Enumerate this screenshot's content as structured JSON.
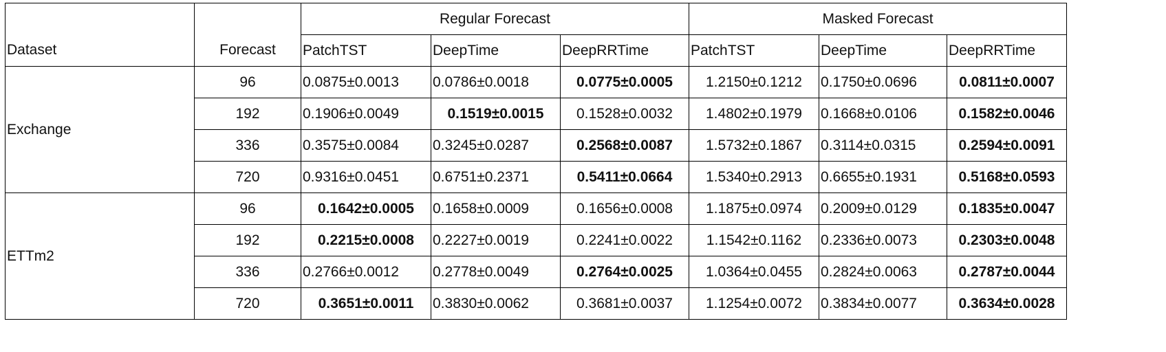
{
  "table": {
    "group_headers": [
      "Regular Forecast",
      "Masked Forecast"
    ],
    "col_dataset": "Dataset",
    "col_forecast": "Forecast",
    "models": [
      "PatchTST",
      "DeepTime",
      "DeepRRTime",
      "PatchTST",
      "DeepTime",
      "DeepRRTime"
    ],
    "groups": [
      {
        "dataset": "Exchange",
        "rows": [
          {
            "forecast": "96",
            "cells": [
              "0.0875±0.0013",
              "0.0786±0.0018",
              "0.0775±0.0005",
              "1.2150±0.1212",
              "0.1750±0.0696",
              "0.0811±0.0007"
            ],
            "bold": [
              false,
              false,
              true,
              false,
              false,
              true
            ]
          },
          {
            "forecast": "192",
            "cells": [
              "0.1906±0.0049",
              "0.1519±0.0015",
              "0.1528±0.0032",
              "1.4802±0.1979",
              "0.1668±0.0106",
              "0.1582±0.0046"
            ],
            "bold": [
              false,
              true,
              false,
              false,
              false,
              true
            ]
          },
          {
            "forecast": "336",
            "cells": [
              "0.3575±0.0084",
              "0.3245±0.0287",
              "0.2568±0.0087",
              "1.5732±0.1867",
              "0.3114±0.0315",
              "0.2594±0.0091"
            ],
            "bold": [
              false,
              false,
              true,
              false,
              false,
              true
            ]
          },
          {
            "forecast": "720",
            "cells": [
              "0.9316±0.0451",
              "0.6751±0.2371",
              "0.5411±0.0664",
              "1.5340±0.2913",
              "0.6655±0.1931",
              "0.5168±0.0593"
            ],
            "bold": [
              false,
              false,
              true,
              false,
              false,
              true
            ]
          }
        ]
      },
      {
        "dataset": "ETTm2",
        "rows": [
          {
            "forecast": "96",
            "cells": [
              "0.1642±0.0005",
              "0.1658±0.0009",
              "0.1656±0.0008",
              "1.1875±0.0974",
              "0.2009±0.0129",
              "0.1835±0.0047"
            ],
            "bold": [
              true,
              false,
              false,
              false,
              false,
              true
            ]
          },
          {
            "forecast": "192",
            "cells": [
              "0.2215±0.0008",
              "0.2227±0.0019",
              "0.2241±0.0022",
              "1.1542±0.1162",
              "0.2336±0.0073",
              "0.2303±0.0048"
            ],
            "bold": [
              true,
              false,
              false,
              false,
              false,
              true
            ]
          },
          {
            "forecast": "336",
            "cells": [
              "0.2766±0.0012",
              "0.2778±0.0049",
              "0.2764±0.0025",
              "1.0364±0.0455",
              "0.2824±0.0063",
              "0.2787±0.0044"
            ],
            "bold": [
              false,
              false,
              true,
              false,
              false,
              true
            ]
          },
          {
            "forecast": "720",
            "cells": [
              "0.3651±0.0011",
              "0.3830±0.0062",
              "0.3681±0.0037",
              "1.1254±0.0072",
              "0.3834±0.0077",
              "0.3634±0.0028"
            ],
            "bold": [
              true,
              false,
              false,
              false,
              false,
              true
            ]
          }
        ]
      }
    ]
  }
}
